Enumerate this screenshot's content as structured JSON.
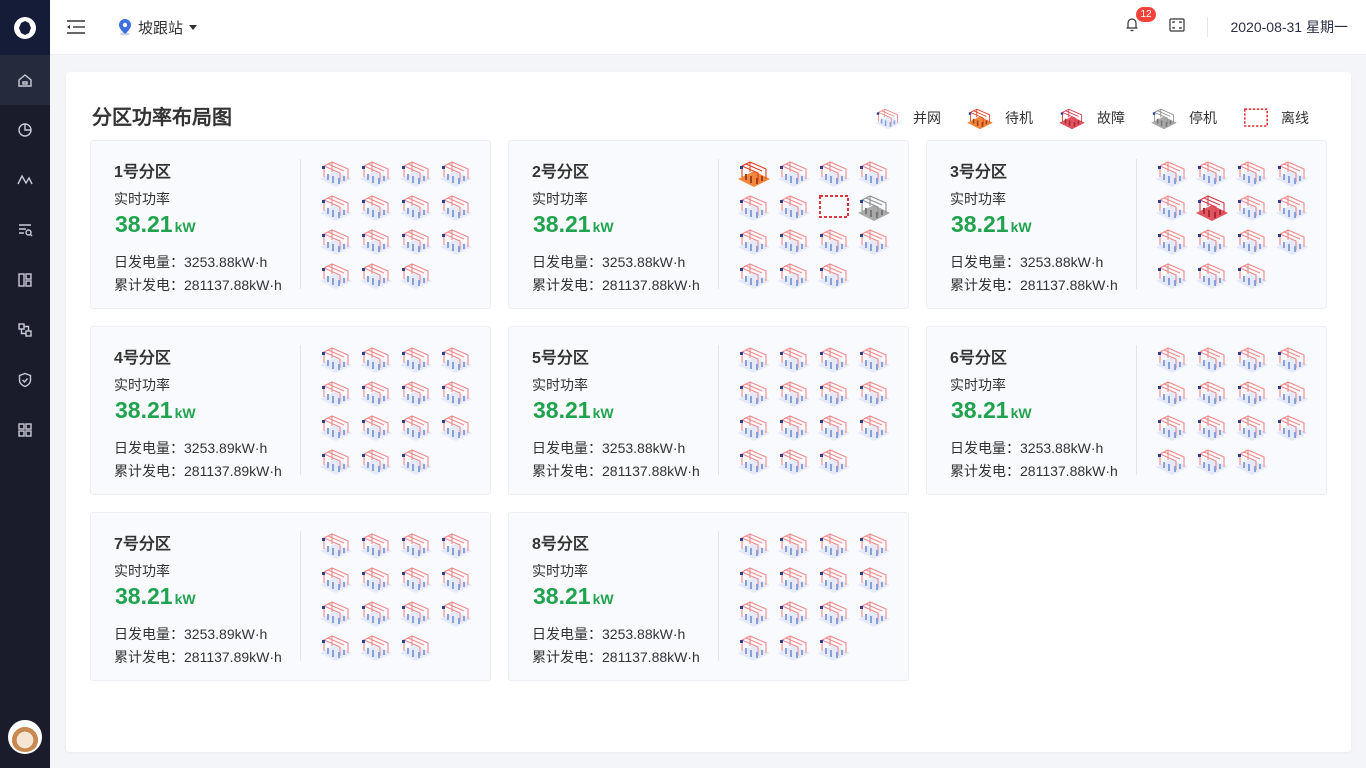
{
  "header": {
    "station": "坡跟站",
    "notifications": "12",
    "date": "2020-08-31 星期一"
  },
  "sidebar": {
    "items": [
      "home-icon",
      "pie-chart-icon",
      "trend-icon",
      "search-list-icon",
      "layout-icon",
      "hierarchy-icon",
      "shield-check-icon",
      "apps-icon"
    ],
    "active": 0
  },
  "page": {
    "title": "分区功率布局图"
  },
  "legend": [
    {
      "status": "grid",
      "label": "并网"
    },
    {
      "status": "standby",
      "label": "待机"
    },
    {
      "status": "fault",
      "label": "故障"
    },
    {
      "status": "stopped",
      "label": "停机"
    },
    {
      "status": "offline",
      "label": "离线"
    }
  ],
  "status_colors": {
    "grid": "#c9d6f2",
    "standby": "#f0883e",
    "fault": "#e05560",
    "stopped": "#a9a9a9",
    "offline": "#d9363e"
  },
  "labels": {
    "power": "实时功率",
    "unit": "kW",
    "daily": "日发电量：",
    "total": "累计发电："
  },
  "zones": [
    {
      "name": "1号分区",
      "power": "38.21",
      "daily": "3253.88kW·h",
      "total": "281137.88kW·h",
      "inverters": [
        "grid",
        "grid",
        "grid",
        "grid",
        "grid",
        "grid",
        "grid",
        "grid",
        "grid",
        "grid",
        "grid",
        "grid",
        "grid",
        "grid",
        "grid"
      ]
    },
    {
      "name": "2号分区",
      "power": "38.21",
      "daily": "3253.88kW·h",
      "total": "281137.88kW·h",
      "inverters": [
        "standby",
        "grid",
        "grid",
        "grid",
        "grid",
        "grid",
        "offline",
        "stopped",
        "grid",
        "grid",
        "grid",
        "grid",
        "grid",
        "grid",
        "grid"
      ]
    },
    {
      "name": "3号分区",
      "power": "38.21",
      "daily": "3253.88kW·h",
      "total": "281137.88kW·h",
      "inverters": [
        "grid",
        "grid",
        "grid",
        "grid",
        "grid",
        "fault",
        "grid",
        "grid",
        "grid",
        "grid",
        "grid",
        "grid",
        "grid",
        "grid",
        "grid"
      ]
    },
    {
      "name": "4号分区",
      "power": "38.21",
      "daily": "3253.89kW·h",
      "total": "281137.89kW·h",
      "inverters": [
        "grid",
        "grid",
        "grid",
        "grid",
        "grid",
        "grid",
        "grid",
        "grid",
        "grid",
        "grid",
        "grid",
        "grid",
        "grid",
        "grid",
        "grid"
      ]
    },
    {
      "name": "5号分区",
      "power": "38.21",
      "daily": "3253.88kW·h",
      "total": "281137.88kW·h",
      "inverters": [
        "grid",
        "grid",
        "grid",
        "grid",
        "grid",
        "grid",
        "grid",
        "grid",
        "grid",
        "grid",
        "grid",
        "grid",
        "grid",
        "grid",
        "grid"
      ]
    },
    {
      "name": "6号分区",
      "power": "38.21",
      "daily": "3253.88kW·h",
      "total": "281137.88kW·h",
      "inverters": [
        "grid",
        "grid",
        "grid",
        "grid",
        "grid",
        "grid",
        "grid",
        "grid",
        "grid",
        "grid",
        "grid",
        "grid",
        "grid",
        "grid",
        "grid"
      ]
    },
    {
      "name": "7号分区",
      "power": "38.21",
      "daily": "3253.89kW·h",
      "total": "281137.89kW·h",
      "inverters": [
        "grid",
        "grid",
        "grid",
        "grid",
        "grid",
        "grid",
        "grid",
        "grid",
        "grid",
        "grid",
        "grid",
        "grid",
        "grid",
        "grid",
        "grid"
      ]
    },
    {
      "name": "8号分区",
      "power": "38.21",
      "daily": "3253.88kW·h",
      "total": "281137.88kW·h",
      "inverters": [
        "grid",
        "grid",
        "grid",
        "grid",
        "grid",
        "grid",
        "grid",
        "grid",
        "grid",
        "grid",
        "grid",
        "grid",
        "grid",
        "grid",
        "grid"
      ]
    }
  ]
}
